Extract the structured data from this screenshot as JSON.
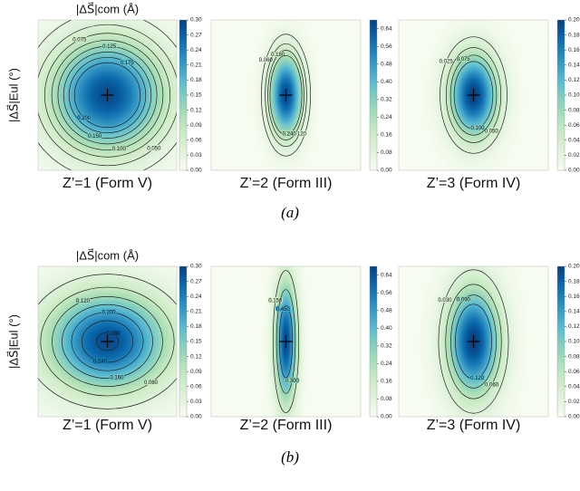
{
  "captions": [
    "(a)",
    "(b)"
  ],
  "chart_data": [
    {
      "type": "contour",
      "title": "Z’=1 (Form V)",
      "xlabel": "|ΔS⃗|com (Å)",
      "ylabel": "|ΔS⃗|Eul (°)",
      "colormap": "GnBu",
      "peak": 0.29,
      "sigma": [
        0.55,
        0.5
      ],
      "clim": [
        0,
        0.3
      ],
      "cticks": [
        {
          "value": 0,
          "label": "0.00"
        },
        0.03,
        0.06,
        0.09,
        0.12,
        0.15,
        0.18,
        0.21,
        0.24,
        0.27,
        {
          "value": 0.3,
          "label": "0.30"
        }
      ],
      "levels": [
        0.025,
        0.05,
        0.075,
        0.1,
        0.125,
        0.15,
        0.175,
        0.2
      ],
      "level_labels": [
        "0.025",
        "0.050",
        "0.075",
        "0.100",
        "0.125",
        "0.150",
        "0.175",
        "0.200"
      ]
    },
    {
      "type": "contour",
      "title": "Z’=2 (Form III)",
      "colormap": "GnBu",
      "peak": 0.66,
      "sigma": [
        0.15,
        0.37
      ],
      "clim": [
        0,
        0.68
      ],
      "cticks": [
        {
          "value": 0,
          "label": "0.00"
        },
        0.08,
        0.16,
        0.24,
        0.32,
        {
          "value": 0.4,
          "label": "0.40"
        },
        0.48,
        0.56,
        0.64
      ],
      "levels": [
        0.06,
        0.12,
        0.18,
        0.24
      ],
      "level_labels": [
        "0.060",
        "0.120",
        "0.180",
        "0.240"
      ]
    },
    {
      "type": "contour",
      "title": "Z’=3 (Form IV)",
      "colormap": "GnBu",
      "peak": 0.2,
      "sigma": [
        0.22,
        0.38
      ],
      "clim": [
        0,
        0.2
      ],
      "cticks": [
        {
          "value": 0,
          "label": "0.00"
        },
        0.02,
        0.04,
        0.06,
        0.08,
        {
          "value": 0.1,
          "label": "0.10"
        },
        0.12,
        0.14,
        0.16,
        0.18,
        {
          "value": 0.2,
          "label": "0.20"
        }
      ],
      "levels": [
        0.025,
        0.05,
        0.075,
        0.1
      ],
      "level_labels": [
        "0.025",
        "0.050",
        "0.075",
        "0.100"
      ]
    },
    {
      "type": "contour",
      "title": "Z’=1 (Form V)",
      "xlabel": "|ΔS⃗|com (Å)",
      "ylabel": "|ΔS⃗|Eul (°)",
      "colormap": "GnBu",
      "peak": 0.29,
      "sigma": [
        0.6,
        0.45
      ],
      "clim": [
        0,
        0.3
      ],
      "cticks": [
        {
          "value": 0,
          "label": "0.00"
        },
        0.03,
        0.06,
        0.09,
        0.12,
        0.15,
        0.18,
        0.21,
        0.24,
        0.27,
        {
          "value": 0.3,
          "label": "0.30"
        }
      ],
      "levels": [
        0.04,
        0.08,
        0.12,
        0.16,
        0.2,
        0.24,
        0.28
      ],
      "level_labels": [
        "0.040",
        "0.080",
        "0.120",
        "0.160",
        "0.200",
        "0.240",
        "0.280"
      ]
    },
    {
      "type": "contour",
      "title": "Z’=2 (Form III)",
      "colormap": "GnBu",
      "peak": 0.66,
      "sigma": [
        0.1,
        0.55
      ],
      "clim": [
        0,
        0.68
      ],
      "cticks": [
        {
          "value": 0,
          "label": "0.00"
        },
        0.08,
        0.16,
        0.24,
        0.32,
        {
          "value": 0.4,
          "label": "0.40"
        },
        0.48,
        0.56,
        0.64
      ],
      "levels": [
        0.15,
        0.3,
        0.45
      ],
      "level_labels": [
        "0.150",
        "0.300",
        "0.450"
      ]
    },
    {
      "type": "contour",
      "title": "Z’=3 (Form IV)",
      "colormap": "GnBu",
      "peak": 0.2,
      "sigma": [
        0.24,
        0.49
      ],
      "clim": [
        0,
        0.2
      ],
      "cticks": [
        {
          "value": 0,
          "label": "0.00"
        },
        0.02,
        0.04,
        0.06,
        0.08,
        {
          "value": 0.1,
          "label": "0.10"
        },
        0.12,
        0.14,
        0.16,
        0.18,
        {
          "value": 0.2,
          "label": "0.20"
        }
      ],
      "levels": [
        0.03,
        0.06,
        0.09,
        0.12
      ],
      "level_labels": [
        "0.030",
        "0.060",
        "0.090",
        "0.120"
      ]
    }
  ]
}
